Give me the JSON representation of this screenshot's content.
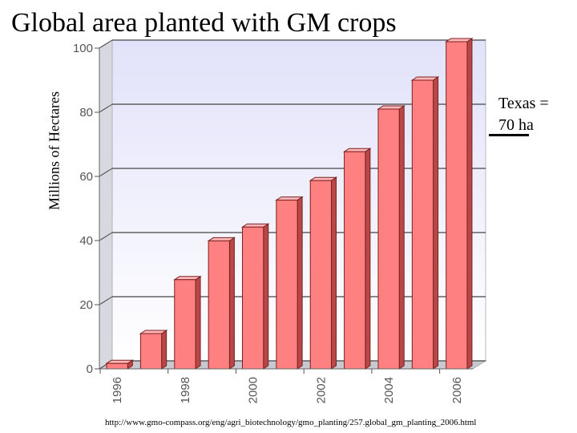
{
  "chart_data": {
    "type": "bar",
    "title": "Global area planted with GM crops",
    "ylabel": "Millions of Hectares",
    "xlabel": "",
    "ylim": [
      0,
      100
    ],
    "yticks": [
      "0",
      "20",
      "40",
      "60",
      "80",
      "100"
    ],
    "xticks": [
      "1996",
      "1998",
      "2000",
      "2002",
      "2004",
      "2006"
    ],
    "categories": [
      "1996",
      "1997",
      "1998",
      "1999",
      "2000",
      "2001",
      "2002",
      "2003",
      "2004",
      "2005",
      "2006"
    ],
    "values": [
      1.7,
      11,
      27.8,
      39.9,
      44.2,
      52.6,
      58.7,
      67.7,
      81,
      90,
      102
    ],
    "grid": true,
    "colors": {
      "bar_front": "#ff8080",
      "bar_side": "#b84848",
      "bar_top": "#ffb8b8",
      "bar_edge": "#7a2020",
      "plot_bg_top": "#e6e6fb",
      "plot_bg_bottom": "#ffffff"
    }
  },
  "annotation": {
    "line1": "Texas =",
    "line2": "70 ha"
  },
  "source_text": "http://www.gmo-compass.org/eng/agri_biotechnology/gmo_planting/257.global_gm_planting_2006.html"
}
